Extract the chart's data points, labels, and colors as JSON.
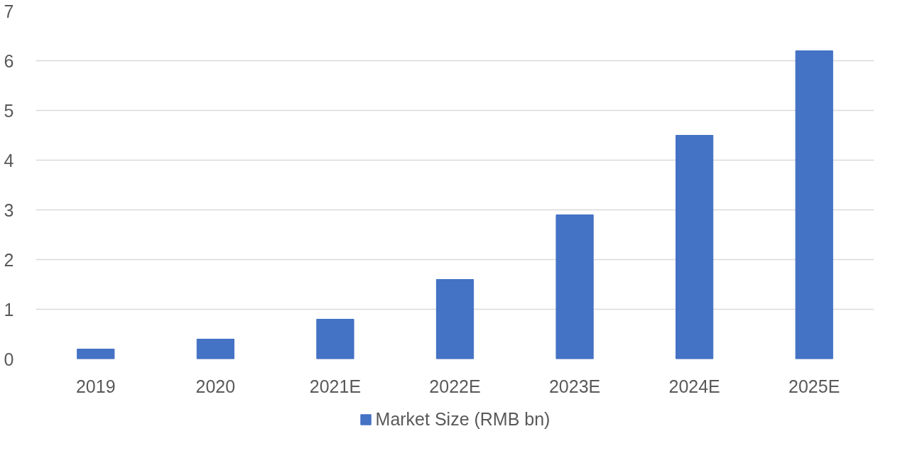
{
  "chart_data": {
    "type": "bar",
    "categories": [
      "2019",
      "2020",
      "2021E",
      "2022E",
      "2023E",
      "2024E",
      "2025E"
    ],
    "series": [
      {
        "name": "Market Size (RMB bn)",
        "color": "#4472c4",
        "values": [
          0.2,
          0.4,
          0.8,
          1.6,
          2.9,
          4.5,
          6.2
        ]
      }
    ],
    "ylim": [
      0,
      7
    ],
    "yticks": [
      0,
      1,
      2,
      3,
      4,
      5,
      6,
      7
    ],
    "grid": "y",
    "legend": "bottom"
  }
}
